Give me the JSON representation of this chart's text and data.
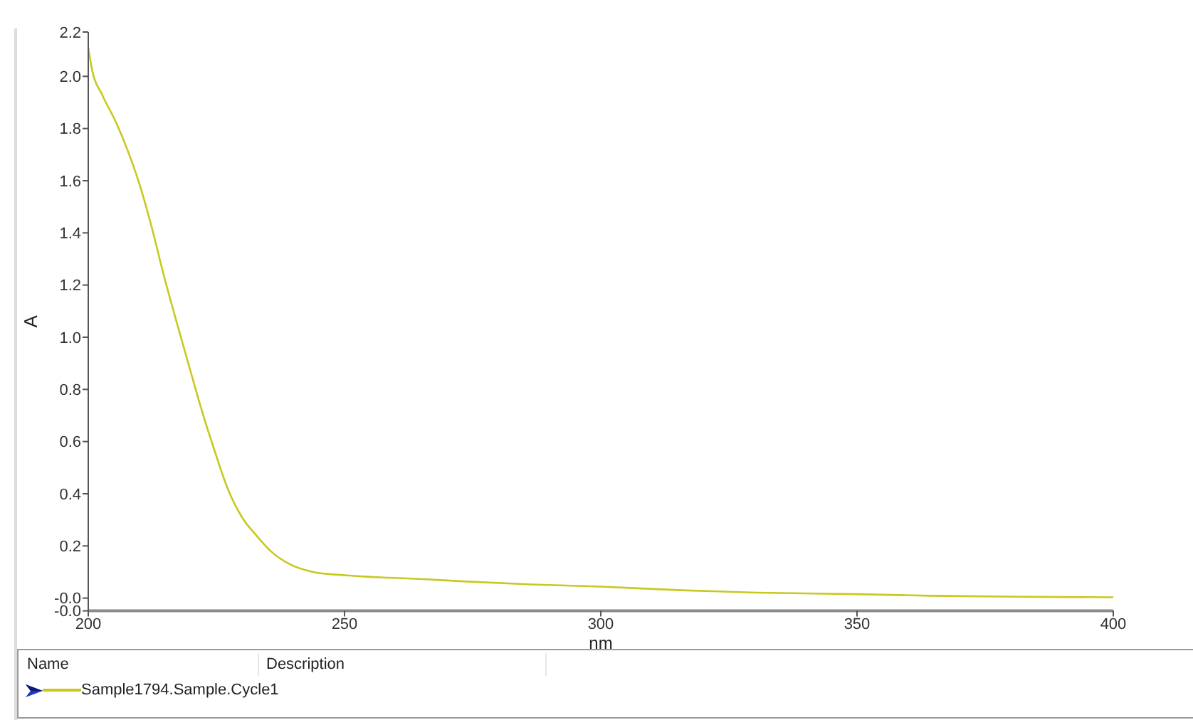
{
  "chart_data": {
    "type": "line",
    "xlabel": "nm",
    "ylabel": "A",
    "legend_title": "Name",
    "annotations": [
      "Description"
    ],
    "x": [
      200,
      200.8,
      202.7,
      205.5,
      207.8,
      210.1,
      212.4,
      214.7,
      217.5,
      219.8,
      222.6,
      224.4,
      227.2,
      230,
      232.8,
      235.6,
      239.3,
      243.9,
      250.4,
      258.7,
      266.1,
      273.1,
      286.6,
      300,
      315.7,
      330.4,
      350,
      364.2,
      381.4,
      400
    ],
    "series": [
      {
        "name": "Sample1794.Sample.Cycle1",
        "color": "#c8c81e",
        "values": [
          2.11,
          2.02,
          1.93,
          1.82,
          1.71,
          1.58,
          1.42,
          1.24,
          1.04,
          0.88,
          0.69,
          0.58,
          0.42,
          0.31,
          0.24,
          0.18,
          0.13,
          0.1,
          0.087,
          0.078,
          0.072,
          0.064,
          0.052,
          0.044,
          0.03,
          0.021,
          0.015,
          0.009,
          0.005,
          0.003
        ]
      }
    ],
    "xlim": [
      200,
      400
    ],
    "xticks": [
      200,
      250,
      300,
      350,
      400
    ],
    "ylim": [
      -0.049,
      2.17
    ],
    "yticks": [
      {
        "value": -0.049,
        "label": "-0.0"
      },
      {
        "value": 0,
        "label": "-0.0"
      },
      0.2,
      0.4,
      0.6,
      0.8,
      {
        "value": 1,
        "label": "1.0"
      },
      1.2,
      1.4,
      1.6,
      1.8,
      {
        "value": 2,
        "label": "2.0"
      },
      {
        "value": 2.17,
        "label": "2.2"
      }
    ],
    "legend": "bottom"
  }
}
